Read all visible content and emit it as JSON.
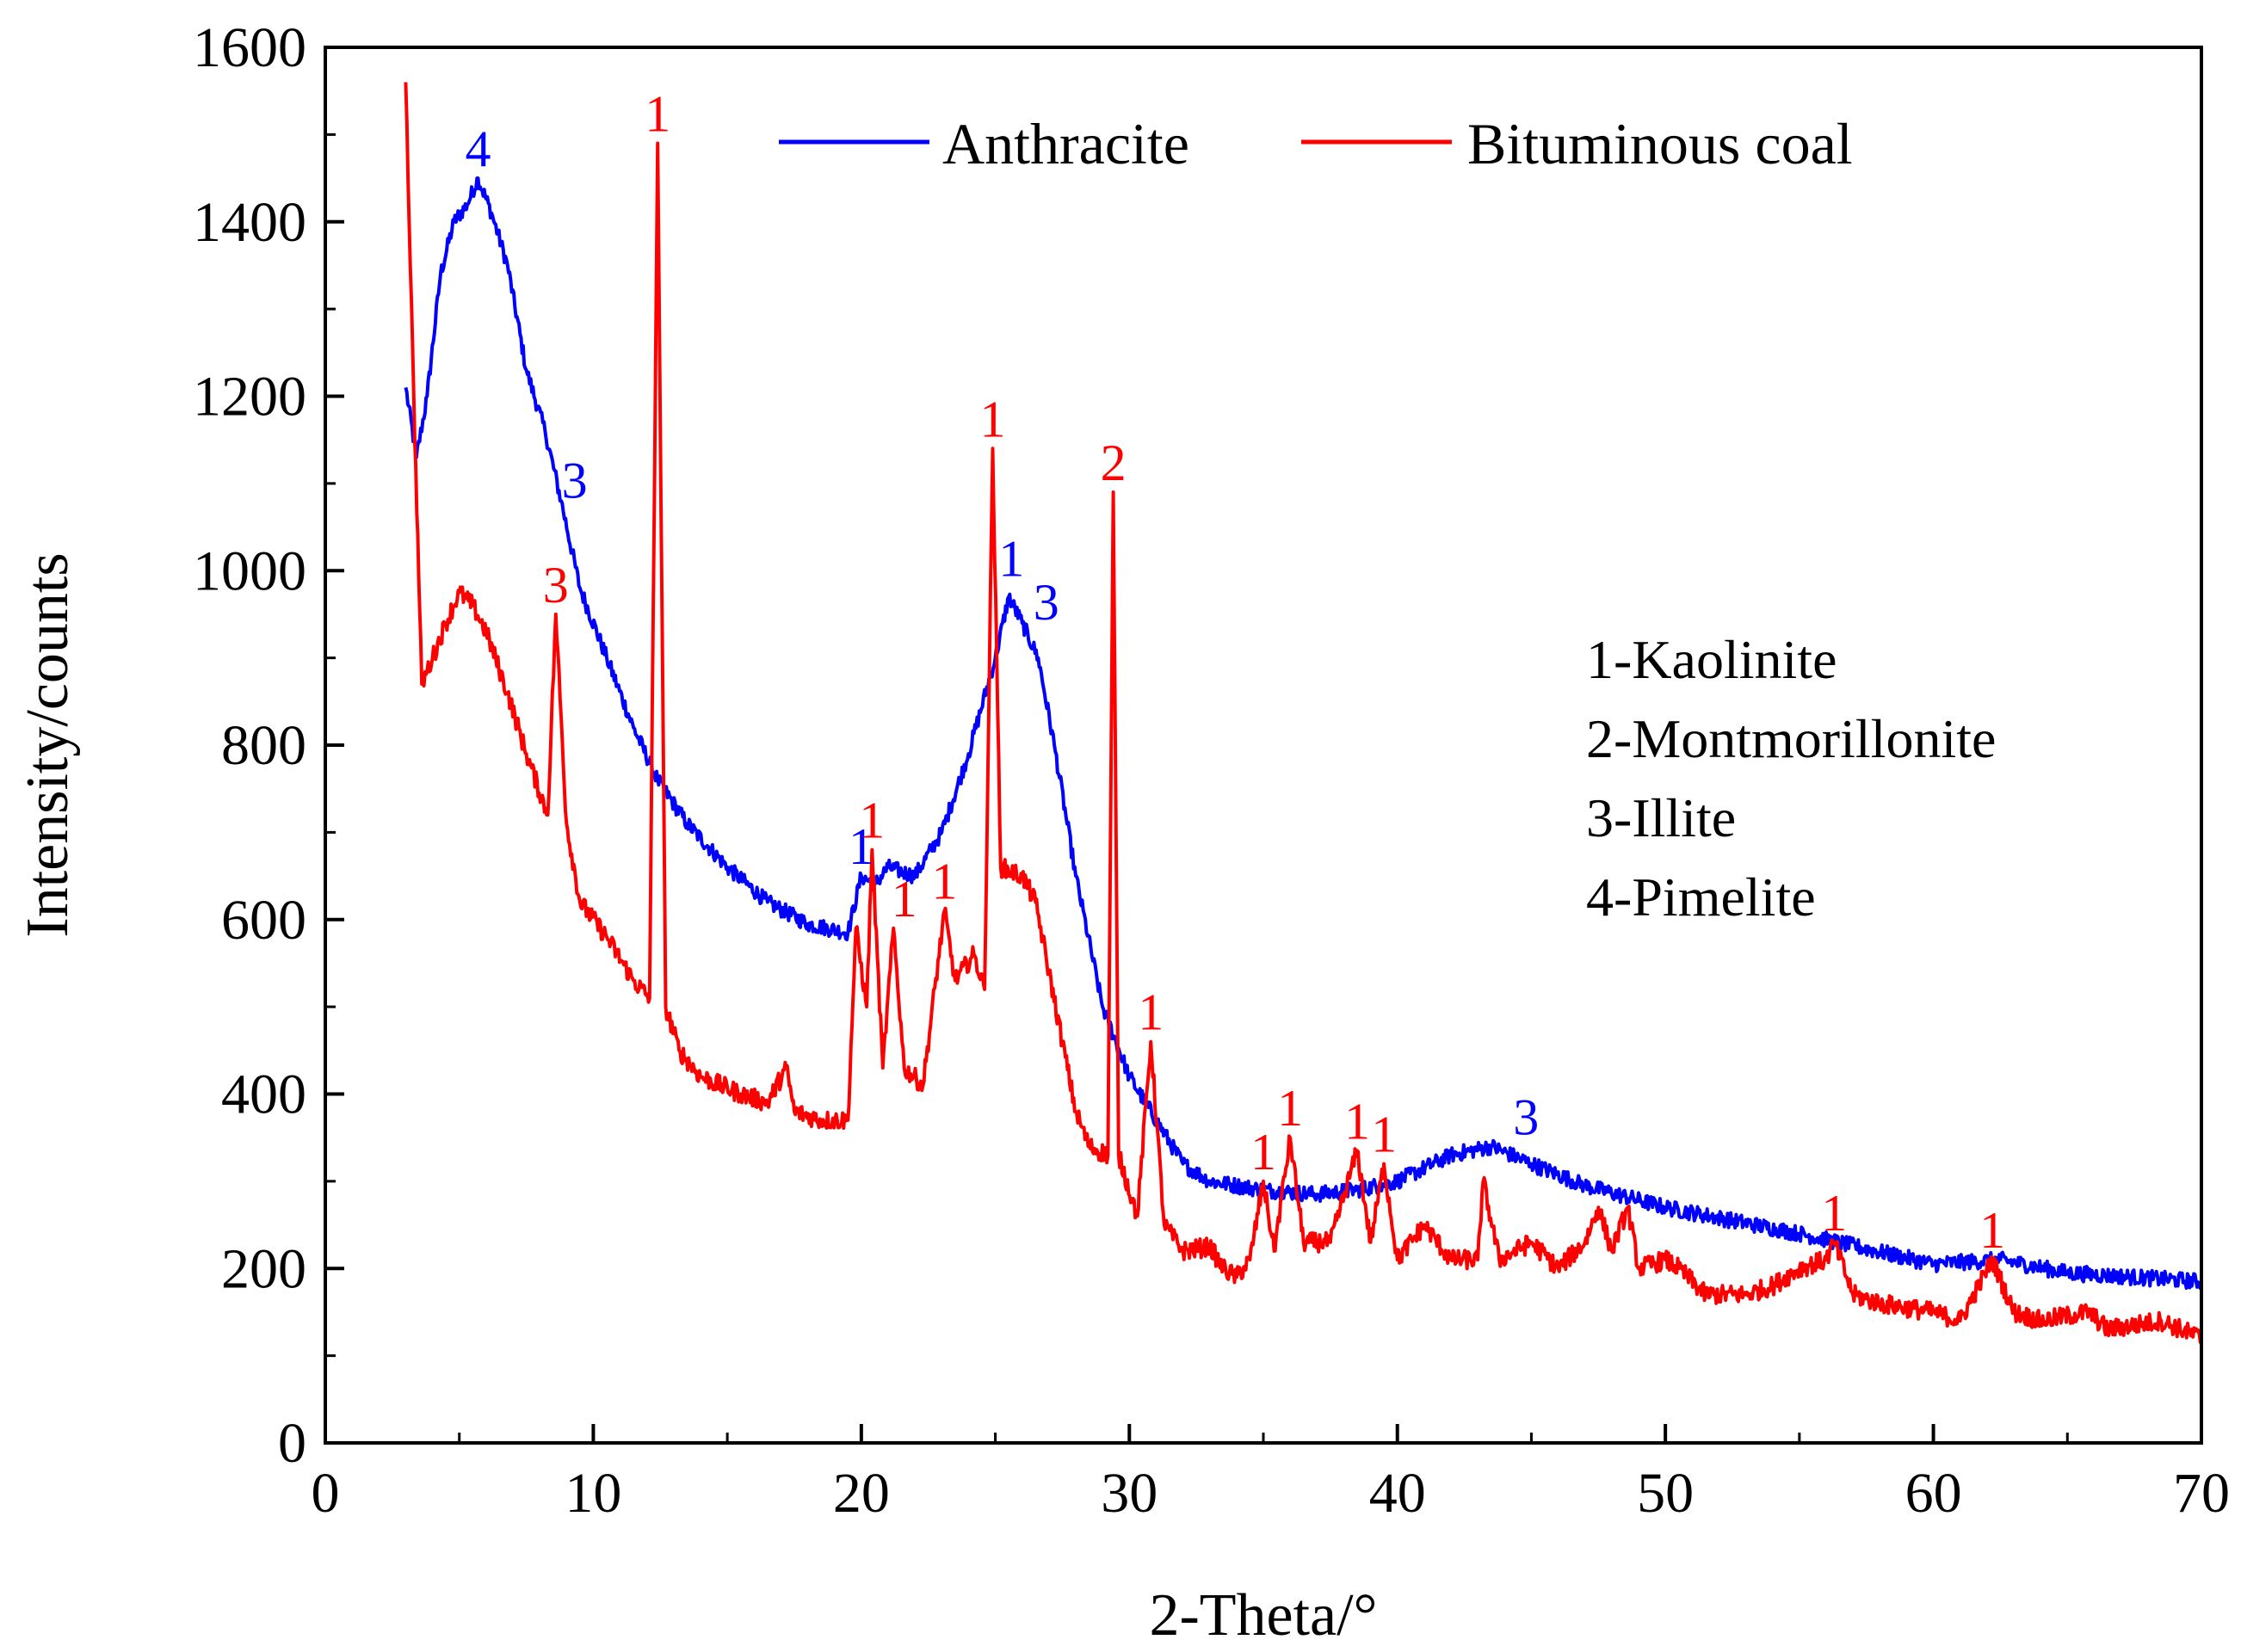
{
  "chart_data": {
    "type": "line",
    "title": "",
    "xlabel": "2-Theta/°",
    "ylabel": "Intensity/counts",
    "xlim": [
      0,
      70
    ],
    "ylim": [
      0,
      1600
    ],
    "xticks": [
      0,
      10,
      20,
      30,
      40,
      50,
      60,
      70
    ],
    "yticks": [
      0,
      200,
      400,
      600,
      800,
      1000,
      1200,
      1400,
      1600
    ],
    "grid": false,
    "legend_position": "top",
    "series": [
      {
        "name": "Anthracite",
        "color": "#0000ff",
        "points": [
          [
            3,
            1210
          ],
          [
            3.4,
            1130
          ],
          [
            3.8,
            1200
          ],
          [
            4.3,
            1340
          ],
          [
            4.8,
            1400
          ],
          [
            5.3,
            1420
          ],
          [
            5.7,
            1450
          ],
          [
            6.2,
            1410
          ],
          [
            6.8,
            1350
          ],
          [
            7.5,
            1230
          ],
          [
            8.2,
            1160
          ],
          [
            8.8,
            1080
          ],
          [
            9.5,
            980
          ],
          [
            10.5,
            900
          ],
          [
            11.5,
            820
          ],
          [
            12.4,
            760
          ],
          [
            13.5,
            710
          ],
          [
            15,
            660
          ],
          [
            16.5,
            620
          ],
          [
            18,
            595
          ],
          [
            19.5,
            585
          ],
          [
            20,
            650
          ],
          [
            20.5,
            640
          ],
          [
            21,
            660
          ],
          [
            22,
            650
          ],
          [
            23,
            700
          ],
          [
            24,
            790
          ],
          [
            25,
            900
          ],
          [
            25.5,
            970
          ],
          [
            26,
            940
          ],
          [
            26.6,
            900
          ],
          [
            27.2,
            800
          ],
          [
            28,
            650
          ],
          [
            29,
            500
          ],
          [
            30,
            420
          ],
          [
            31,
            370
          ],
          [
            32,
            320
          ],
          [
            33,
            300
          ],
          [
            35,
            290
          ],
          [
            37,
            285
          ],
          [
            38.5,
            290
          ],
          [
            40,
            300
          ],
          [
            42,
            330
          ],
          [
            43.5,
            340
          ],
          [
            45,
            320
          ],
          [
            47,
            295
          ],
          [
            50,
            270
          ],
          [
            55,
            240
          ],
          [
            60,
            205
          ],
          [
            62.5,
            210
          ],
          [
            65,
            195
          ],
          [
            70,
            185
          ]
        ],
        "peak_labels": [
          {
            "label": "4",
            "x": 5.7,
            "y": 1450
          },
          {
            "label": "3",
            "x": 9.3,
            "y": 1070
          },
          {
            "label": "1",
            "x": 20.0,
            "y": 650
          },
          {
            "label": "1",
            "x": 25.6,
            "y": 980
          },
          {
            "label": "3",
            "x": 26.9,
            "y": 930
          },
          {
            "label": "3",
            "x": 44.8,
            "y": 340
          }
        ]
      },
      {
        "name": "Bituminous coal",
        "color": "#ff0000",
        "points": [
          [
            3,
            1560
          ],
          [
            3.3,
            1200
          ],
          [
            3.6,
            870
          ],
          [
            4,
            900
          ],
          [
            4.5,
            940
          ],
          [
            5,
            975
          ],
          [
            5.5,
            960
          ],
          [
            6,
            930
          ],
          [
            6.8,
            860
          ],
          [
            7.5,
            790
          ],
          [
            8.3,
            720
          ],
          [
            8.6,
            950
          ],
          [
            9,
            710
          ],
          [
            9.5,
            620
          ],
          [
            10.5,
            580
          ],
          [
            11.5,
            530
          ],
          [
            12.1,
            510
          ],
          [
            12.4,
            1490
          ],
          [
            12.7,
            500
          ],
          [
            13.2,
            450
          ],
          [
            14,
            420
          ],
          [
            15.5,
            400
          ],
          [
            16.5,
            390
          ],
          [
            17.2,
            430
          ],
          [
            17.5,
            380
          ],
          [
            18.5,
            370
          ],
          [
            19.5,
            370
          ],
          [
            19.8,
            590
          ],
          [
            20.2,
            500
          ],
          [
            20.4,
            680
          ],
          [
            20.8,
            430
          ],
          [
            21.2,
            590
          ],
          [
            21.6,
            430
          ],
          [
            22.3,
            410
          ],
          [
            23.1,
            610
          ],
          [
            23.5,
            530
          ],
          [
            24.2,
            560
          ],
          [
            24.6,
            520
          ],
          [
            24.9,
            1140
          ],
          [
            25.2,
            660
          ],
          [
            26,
            650
          ],
          [
            26.5,
            620
          ],
          [
            27,
            540
          ],
          [
            27.5,
            460
          ],
          [
            28,
            380
          ],
          [
            28.5,
            340
          ],
          [
            29.2,
            330
          ],
          [
            29.4,
            1090
          ],
          [
            29.6,
            330
          ],
          [
            30.3,
            260
          ],
          [
            30.8,
            460
          ],
          [
            31.3,
            250
          ],
          [
            32,
            220
          ],
          [
            33,
            225
          ],
          [
            33.5,
            200
          ],
          [
            34,
            190
          ],
          [
            34.5,
            210
          ],
          [
            35,
            300
          ],
          [
            35.4,
            220
          ],
          [
            36,
            350
          ],
          [
            36.5,
            230
          ],
          [
            37.5,
            230
          ],
          [
            38.5,
            335
          ],
          [
            39,
            230
          ],
          [
            39.5,
            320
          ],
          [
            40,
            210
          ],
          [
            41,
            250
          ],
          [
            42,
            210
          ],
          [
            43,
            210
          ],
          [
            43.2,
            300
          ],
          [
            43.8,
            210
          ],
          [
            45,
            230
          ],
          [
            46,
            200
          ],
          [
            47,
            230
          ],
          [
            47.5,
            270
          ],
          [
            48,
            220
          ],
          [
            48.6,
            270
          ],
          [
            49,
            200
          ],
          [
            50,
            210
          ],
          [
            50.5,
            200
          ],
          [
            51.5,
            170
          ],
          [
            53,
            170
          ],
          [
            54,
            180
          ],
          [
            55,
            200
          ],
          [
            56,
            210
          ],
          [
            56.3,
            230
          ],
          [
            57,
            170
          ],
          [
            58,
            160
          ],
          [
            60,
            150
          ],
          [
            61,
            140
          ],
          [
            62.2,
            210
          ],
          [
            63,
            150
          ],
          [
            64,
            140
          ],
          [
            65.8,
            150
          ],
          [
            66.5,
            130
          ],
          [
            68.5,
            140
          ],
          [
            70,
            120
          ]
        ],
        "peak_labels": [
          {
            "label": "1",
            "x": 12.4,
            "y": 1490
          },
          {
            "label": "3",
            "x": 8.6,
            "y": 950
          },
          {
            "label": "1",
            "x": 20.4,
            "y": 680
          },
          {
            "label": "1",
            "x": 21.6,
            "y": 590
          },
          {
            "label": "1",
            "x": 23.1,
            "y": 610
          },
          {
            "label": "1",
            "x": 24.9,
            "y": 1140
          },
          {
            "label": "2",
            "x": 29.4,
            "y": 1090
          },
          {
            "label": "1",
            "x": 30.8,
            "y": 460
          },
          {
            "label": "1",
            "x": 35.0,
            "y": 300
          },
          {
            "label": "1",
            "x": 36.0,
            "y": 350
          },
          {
            "label": "1",
            "x": 38.5,
            "y": 335
          },
          {
            "label": "1",
            "x": 39.5,
            "y": 320
          },
          {
            "label": "1",
            "x": 56.3,
            "y": 230
          },
          {
            "label": "1",
            "x": 62.2,
            "y": 210
          }
        ]
      }
    ],
    "annotation_key": [
      "1-Kaolinite",
      "2-Montmorillonite",
      "3-Illite",
      "4-Pimelite"
    ]
  }
}
